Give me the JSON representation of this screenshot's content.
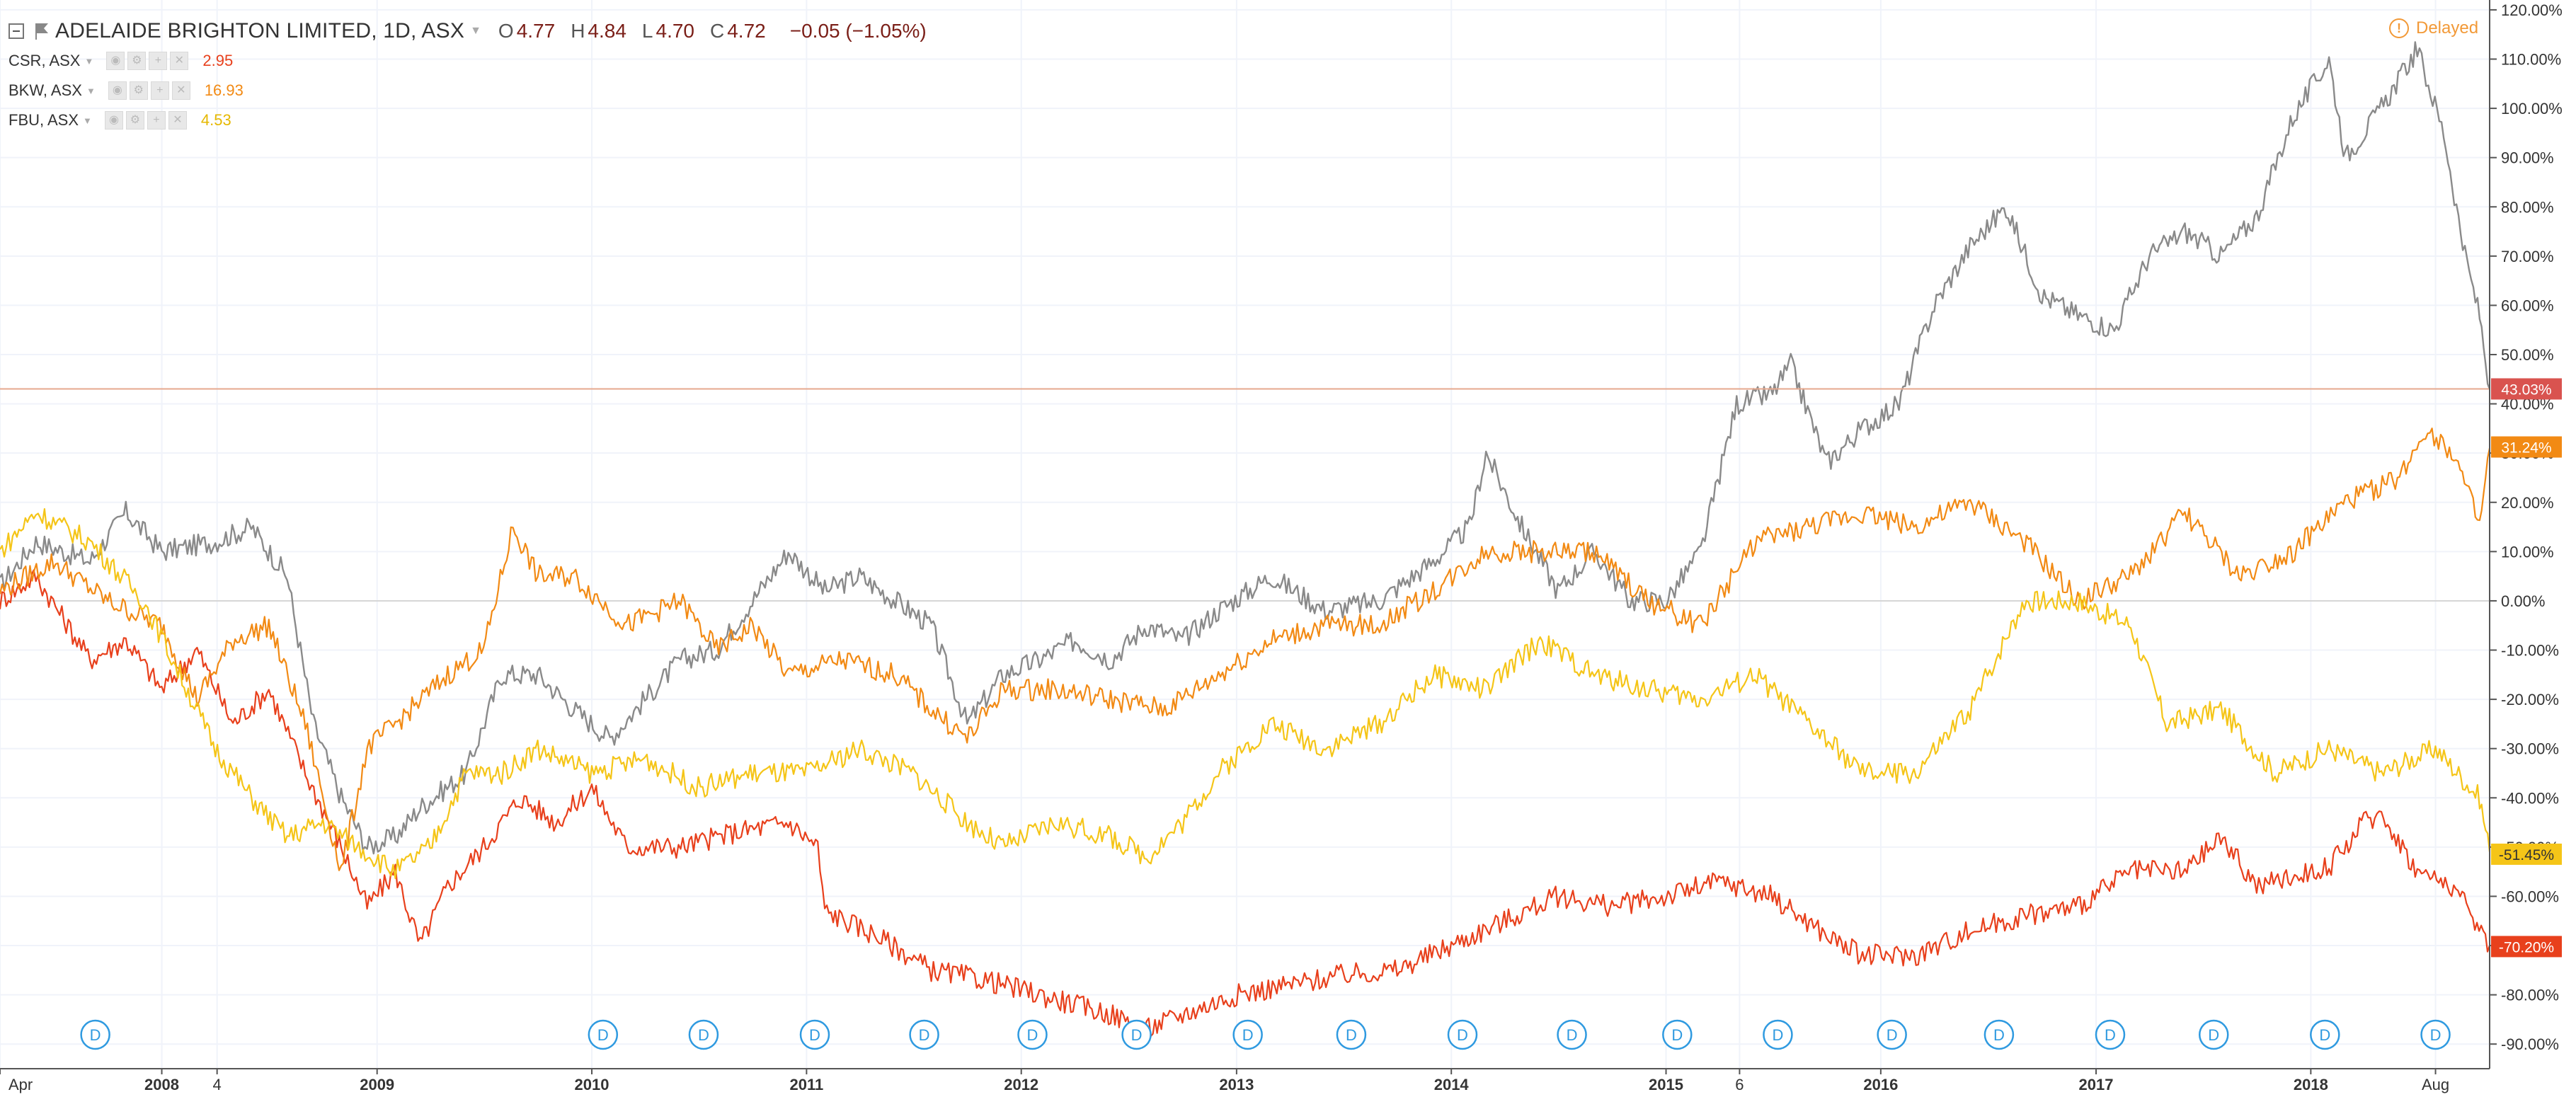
{
  "header": {
    "title": "ADELAIDE BRIGHTON LIMITED, 1D, ASX",
    "ohlc": [
      {
        "label": "O",
        "value": "4.77"
      },
      {
        "label": "H",
        "value": "4.84"
      },
      {
        "label": "L",
        "value": "4.70"
      },
      {
        "label": "C",
        "value": "4.72"
      }
    ],
    "change": "−0.05 (−1.05%)",
    "delayed_label": "Delayed",
    "colors": {
      "main_line": "#8a8a8a",
      "change_text": "#7a1e17",
      "delayed": "#f29937"
    }
  },
  "compare_rows": [
    {
      "symbol": "CSR, ASX",
      "value": "2.95",
      "color": "#e8401c"
    },
    {
      "symbol": "BKW, ASX",
      "value": "16.93",
      "color": "#f28a14"
    },
    {
      "symbol": "FBU, ASX",
      "value": "4.53",
      "color": "#f5c518"
    }
  ],
  "dividend_marker_label": "D",
  "chart_data": {
    "type": "line",
    "x_range": [
      "2007-04",
      "2018-11"
    ],
    "x_ticks": [
      {
        "label": "Apr",
        "date": "2007-04-01"
      },
      {
        "label": "2008",
        "date": "2008-01-01"
      },
      {
        "label": "4",
        "date": "2008-04-04"
      },
      {
        "label": "2009",
        "date": "2009-01-01"
      },
      {
        "label": "2010",
        "date": "2010-01-01"
      },
      {
        "label": "2011",
        "date": "2011-01-01"
      },
      {
        "label": "2012",
        "date": "2012-01-01"
      },
      {
        "label": "2013",
        "date": "2013-01-01"
      },
      {
        "label": "2014",
        "date": "2014-01-01"
      },
      {
        "label": "2015",
        "date": "2015-01-01"
      },
      {
        "label": "6",
        "date": "2015-05-06"
      },
      {
        "label": "2016",
        "date": "2016-01-01"
      },
      {
        "label": "2017",
        "date": "2017-01-01"
      },
      {
        "label": "2018",
        "date": "2018-01-01"
      },
      {
        "label": "Aug",
        "date": "2018-08-01"
      }
    ],
    "y_unit": "%",
    "ylim": [
      -95,
      122
    ],
    "y_ticks": [
      "120.00%",
      "110.00%",
      "100.00%",
      "90.00%",
      "80.00%",
      "70.00%",
      "60.00%",
      "50.00%",
      "40.00%",
      "30.00%",
      "20.00%",
      "10.00%",
      "0.00%",
      "-10.00%",
      "-20.00%",
      "-30.00%",
      "-40.00%",
      "-50.00%",
      "-60.00%",
      "-70.00%",
      "-80.00%",
      "-90.00%"
    ],
    "y_tick_values": [
      120,
      110,
      100,
      90,
      80,
      70,
      60,
      50,
      40,
      30,
      20,
      10,
      0,
      -10,
      -20,
      -30,
      -40,
      -50,
      -60,
      -70,
      -80,
      -90
    ],
    "grid": true,
    "zero_line": 0,
    "series": [
      {
        "name": "ADELAIDE BRIGHTON LIMITED",
        "color": "#8a8a8a",
        "last_label": "43.03%",
        "last_value": 43.03,
        "label_color": "#d9534f",
        "points": [
          [
            "2007-04-01",
            3
          ],
          [
            "2007-06-01",
            12
          ],
          [
            "2007-09-01",
            8
          ],
          [
            "2007-11-01",
            18
          ],
          [
            "2008-01-01",
            10
          ],
          [
            "2008-04-01",
            12
          ],
          [
            "2008-06-01",
            15
          ],
          [
            "2008-08-01",
            5
          ],
          [
            "2008-09-15",
            -25
          ],
          [
            "2008-11-01",
            -40
          ],
          [
            "2008-12-15",
            -50
          ],
          [
            "2009-02-01",
            -48
          ],
          [
            "2009-03-15",
            -42
          ],
          [
            "2009-06-01",
            -35
          ],
          [
            "2009-08-01",
            -15
          ],
          [
            "2009-10-01",
            -15
          ],
          [
            "2009-12-01",
            -22
          ],
          [
            "2010-02-01",
            -28
          ],
          [
            "2010-04-01",
            -20
          ],
          [
            "2010-06-01",
            -12
          ],
          [
            "2010-08-01",
            -10
          ],
          [
            "2010-10-01",
            0
          ],
          [
            "2010-12-01",
            10
          ],
          [
            "2011-02-01",
            2
          ],
          [
            "2011-04-01",
            5
          ],
          [
            "2011-06-01",
            0
          ],
          [
            "2011-08-01",
            -5
          ],
          [
            "2011-10-01",
            -25
          ],
          [
            "2011-12-01",
            -15
          ],
          [
            "2012-02-01",
            -12
          ],
          [
            "2012-04-01",
            -8
          ],
          [
            "2012-06-01",
            -12
          ],
          [
            "2012-08-01",
            -5
          ],
          [
            "2012-10-01",
            -8
          ],
          [
            "2012-12-01",
            -2
          ],
          [
            "2013-03-01",
            5
          ],
          [
            "2013-06-01",
            -2
          ],
          [
            "2013-09-01",
            0
          ],
          [
            "2013-12-01",
            8
          ],
          [
            "2014-02-01",
            15
          ],
          [
            "2014-03-01",
            30
          ],
          [
            "2014-05-01",
            15
          ],
          [
            "2014-07-01",
            2
          ],
          [
            "2014-09-01",
            10
          ],
          [
            "2014-11-01",
            0
          ],
          [
            "2015-01-01",
            0
          ],
          [
            "2015-03-01",
            10
          ],
          [
            "2015-05-01",
            40
          ],
          [
            "2015-07-01",
            42
          ],
          [
            "2015-08-01",
            48
          ],
          [
            "2015-10-01",
            28
          ],
          [
            "2015-12-01",
            35
          ],
          [
            "2016-02-01",
            40
          ],
          [
            "2016-04-01",
            60
          ],
          [
            "2016-06-01",
            72
          ],
          [
            "2016-08-01",
            80
          ],
          [
            "2016-10-01",
            62
          ],
          [
            "2016-12-01",
            58
          ],
          [
            "2017-02-01",
            55
          ],
          [
            "2017-04-01",
            70
          ],
          [
            "2017-06-01",
            75
          ],
          [
            "2017-08-01",
            70
          ],
          [
            "2017-10-01",
            78
          ],
          [
            "2017-12-01",
            98
          ],
          [
            "2018-02-01",
            110
          ],
          [
            "2018-03-01",
            90
          ],
          [
            "2018-05-01",
            100
          ],
          [
            "2018-07-01",
            112
          ],
          [
            "2018-08-15",
            95
          ],
          [
            "2018-09-20",
            70
          ],
          [
            "2018-10-15",
            58
          ],
          [
            "2018-11-01",
            43
          ]
        ]
      },
      {
        "name": "CSR, ASX",
        "color": "#e8401c",
        "last_label": "-70.20%",
        "last_value": -70.2,
        "points": [
          [
            "2007-04-01",
            0
          ],
          [
            "2007-06-01",
            5
          ],
          [
            "2007-09-01",
            -12
          ],
          [
            "2007-11-01",
            -8
          ],
          [
            "2008-01-01",
            -18
          ],
          [
            "2008-03-01",
            -10
          ],
          [
            "2008-05-01",
            -25
          ],
          [
            "2008-07-01",
            -18
          ],
          [
            "2008-09-01",
            -35
          ],
          [
            "2008-11-01",
            -50
          ],
          [
            "2008-12-15",
            -62
          ],
          [
            "2009-02-01",
            -55
          ],
          [
            "2009-03-15",
            -70
          ],
          [
            "2009-05-01",
            -58
          ],
          [
            "2009-07-01",
            -50
          ],
          [
            "2009-09-01",
            -40
          ],
          [
            "2009-11-01",
            -45
          ],
          [
            "2010-01-01",
            -38
          ],
          [
            "2010-03-01",
            -50
          ],
          [
            "2010-06-01",
            -50
          ],
          [
            "2010-09-01",
            -47
          ],
          [
            "2010-12-01",
            -45
          ],
          [
            "2011-01-20",
            -50
          ],
          [
            "2011-02-01",
            -63
          ],
          [
            "2011-05-01",
            -68
          ],
          [
            "2011-08-01",
            -75
          ],
          [
            "2011-11-01",
            -77
          ],
          [
            "2012-02-01",
            -80
          ],
          [
            "2012-06-01",
            -84
          ],
          [
            "2012-08-01",
            -87
          ],
          [
            "2012-10-01",
            -84
          ],
          [
            "2013-01-01",
            -80
          ],
          [
            "2013-04-01",
            -78
          ],
          [
            "2013-07-01",
            -76
          ],
          [
            "2013-10-01",
            -75
          ],
          [
            "2014-01-01",
            -70
          ],
          [
            "2014-04-01",
            -65
          ],
          [
            "2014-07-01",
            -60
          ],
          [
            "2014-10-01",
            -62
          ],
          [
            "2015-01-01",
            -60
          ],
          [
            "2015-04-01",
            -57
          ],
          [
            "2015-07-01",
            -60
          ],
          [
            "2015-10-01",
            -68
          ],
          [
            "2015-12-01",
            -72
          ],
          [
            "2016-03-01",
            -72
          ],
          [
            "2016-06-01",
            -67
          ],
          [
            "2016-09-01",
            -64
          ],
          [
            "2016-12-01",
            -62
          ],
          [
            "2017-03-01",
            -55
          ],
          [
            "2017-06-01",
            -55
          ],
          [
            "2017-08-01",
            -48
          ],
          [
            "2017-10-01",
            -58
          ],
          [
            "2017-12-01",
            -56
          ],
          [
            "2018-02-01",
            -54
          ],
          [
            "2018-04-01",
            -45
          ],
          [
            "2018-05-01",
            -43
          ],
          [
            "2018-07-01",
            -55
          ],
          [
            "2018-09-01",
            -58
          ],
          [
            "2018-11-01",
            -70
          ]
        ]
      },
      {
        "name": "BKW, ASX",
        "color": "#f28a14",
        "last_label": "31.24%",
        "last_value": 31.24,
        "points": [
          [
            "2007-04-01",
            2
          ],
          [
            "2007-07-01",
            8
          ],
          [
            "2007-10-01",
            0
          ],
          [
            "2008-01-01",
            -5
          ],
          [
            "2008-03-01",
            -20
          ],
          [
            "2008-05-01",
            -8
          ],
          [
            "2008-07-01",
            -5
          ],
          [
            "2008-09-01",
            -25
          ],
          [
            "2008-11-01",
            -55
          ],
          [
            "2008-12-15",
            -30
          ],
          [
            "2009-02-01",
            -25
          ],
          [
            "2009-05-01",
            -15
          ],
          [
            "2009-07-01",
            -10
          ],
          [
            "2009-08-20",
            15
          ],
          [
            "2009-10-01",
            5
          ],
          [
            "2009-12-01",
            5
          ],
          [
            "2010-03-01",
            -5
          ],
          [
            "2010-06-01",
            0
          ],
          [
            "2010-08-01",
            -10
          ],
          [
            "2010-10-01",
            -5
          ],
          [
            "2010-12-01",
            -15
          ],
          [
            "2011-03-01",
            -12
          ],
          [
            "2011-06-01",
            -15
          ],
          [
            "2011-08-01",
            -22
          ],
          [
            "2011-10-01",
            -28
          ],
          [
            "2011-12-01",
            -18
          ],
          [
            "2012-03-01",
            -18
          ],
          [
            "2012-06-01",
            -20
          ],
          [
            "2012-09-01",
            -22
          ],
          [
            "2012-12-01",
            -15
          ],
          [
            "2013-03-01",
            -8
          ],
          [
            "2013-06-01",
            -5
          ],
          [
            "2013-09-01",
            -5
          ],
          [
            "2013-12-01",
            2
          ],
          [
            "2014-03-01",
            10
          ],
          [
            "2014-06-01",
            10
          ],
          [
            "2014-09-01",
            10
          ],
          [
            "2014-12-01",
            0
          ],
          [
            "2015-03-01",
            -5
          ],
          [
            "2015-06-01",
            12
          ],
          [
            "2015-09-01",
            15
          ],
          [
            "2015-12-01",
            18
          ],
          [
            "2016-03-01",
            15
          ],
          [
            "2016-06-01",
            20
          ],
          [
            "2016-09-01",
            12
          ],
          [
            "2016-12-01",
            0
          ],
          [
            "2017-03-01",
            5
          ],
          [
            "2017-06-01",
            18
          ],
          [
            "2017-09-01",
            5
          ],
          [
            "2017-12-01",
            10
          ],
          [
            "2018-03-01",
            20
          ],
          [
            "2018-06-01",
            25
          ],
          [
            "2018-07-15",
            35
          ],
          [
            "2018-09-01",
            30
          ],
          [
            "2018-10-15",
            15
          ],
          [
            "2018-11-01",
            31
          ]
        ]
      },
      {
        "name": "FBU, ASX",
        "color": "#f5c518",
        "last_label": "-51.45%",
        "last_value": -51.45,
        "label_color": "#f5c518",
        "label_text_color": "#333333",
        "points": [
          [
            "2007-04-01",
            10
          ],
          [
            "2007-06-01",
            18
          ],
          [
            "2007-09-01",
            12
          ],
          [
            "2007-12-01",
            0
          ],
          [
            "2008-02-01",
            -15
          ],
          [
            "2008-04-01",
            -30
          ],
          [
            "2008-06-01",
            -40
          ],
          [
            "2008-08-01",
            -48
          ],
          [
            "2008-10-01",
            -45
          ],
          [
            "2008-12-01",
            -50
          ],
          [
            "2009-02-01",
            -55
          ],
          [
            "2009-04-01",
            -50
          ],
          [
            "2009-06-01",
            -35
          ],
          [
            "2009-08-01",
            -35
          ],
          [
            "2009-10-01",
            -30
          ],
          [
            "2010-01-01",
            -35
          ],
          [
            "2010-04-01",
            -32
          ],
          [
            "2010-07-01",
            -38
          ],
          [
            "2010-10-01",
            -35
          ],
          [
            "2011-01-01",
            -35
          ],
          [
            "2011-04-01",
            -30
          ],
          [
            "2011-07-01",
            -35
          ],
          [
            "2011-10-01",
            -45
          ],
          [
            "2011-12-01",
            -50
          ],
          [
            "2012-03-01",
            -45
          ],
          [
            "2012-06-01",
            -48
          ],
          [
            "2012-08-01",
            -52
          ],
          [
            "2012-10-01",
            -45
          ],
          [
            "2012-12-01",
            -35
          ],
          [
            "2013-03-01",
            -25
          ],
          [
            "2013-06-01",
            -30
          ],
          [
            "2013-09-01",
            -25
          ],
          [
            "2013-12-01",
            -15
          ],
          [
            "2014-03-01",
            -18
          ],
          [
            "2014-06-01",
            -8
          ],
          [
            "2014-09-01",
            -15
          ],
          [
            "2014-12-01",
            -18
          ],
          [
            "2015-03-01",
            -20
          ],
          [
            "2015-06-01",
            -15
          ],
          [
            "2015-09-01",
            -25
          ],
          [
            "2015-12-01",
            -35
          ],
          [
            "2016-03-01",
            -35
          ],
          [
            "2016-06-01",
            -22
          ],
          [
            "2016-09-01",
            0
          ],
          [
            "2016-12-01",
            0
          ],
          [
            "2017-03-01",
            -5
          ],
          [
            "2017-05-01",
            -25
          ],
          [
            "2017-08-01",
            -22
          ],
          [
            "2017-11-01",
            -35
          ],
          [
            "2018-02-01",
            -30
          ],
          [
            "2018-05-01",
            -35
          ],
          [
            "2018-08-01",
            -30
          ],
          [
            "2018-10-15",
            -40
          ],
          [
            "2018-11-01",
            -51
          ]
        ]
      }
    ]
  }
}
